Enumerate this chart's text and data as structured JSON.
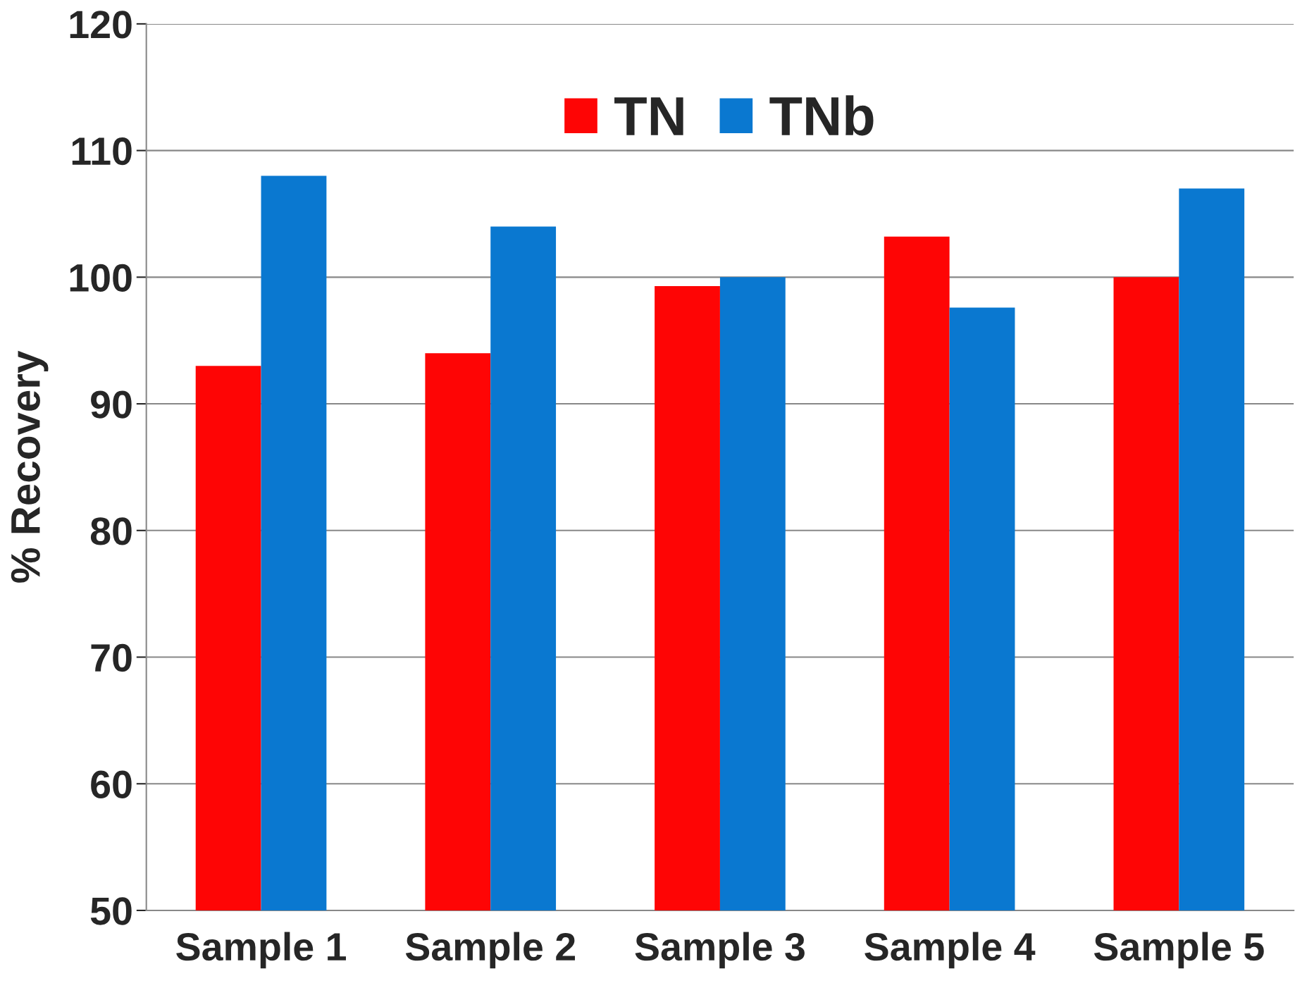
{
  "chart_data": {
    "type": "bar",
    "ylabel": "% Recovery",
    "categories": [
      "Sample 1",
      "Sample 2",
      "Sample 3",
      "Sample 4",
      "Sample 5"
    ],
    "series": [
      {
        "name": "TN",
        "color": "#fe0505",
        "values": [
          93,
          94,
          99.3,
          103.2,
          100
        ]
      },
      {
        "name": "TNb",
        "color": "#0a78d0",
        "values": [
          108,
          104,
          100,
          97.6,
          107
        ]
      }
    ],
    "ylim": [
      50,
      120
    ],
    "yticks": [
      50,
      60,
      70,
      80,
      90,
      100,
      110,
      120
    ],
    "grid": "y",
    "legend": "top"
  }
}
